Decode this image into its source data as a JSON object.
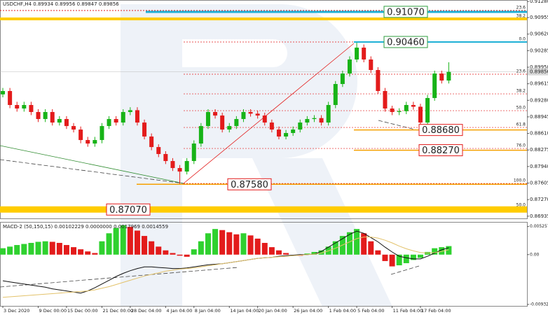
{
  "chart_data": [
    {
      "type": "candlestick",
      "title": "USDCHF,H4  0.89934 0.89956 0.89847 0.89856",
      "up_color": "#17b317",
      "down_color": "#e31b1b",
      "xlim": [
        -0.4,
        74.05
      ],
      "ylim": [
        0.8689,
        0.9131
      ],
      "yticks": [
        {
          "value": 0.9128,
          "label": "0.91280"
        },
        {
          "value": 0.90955,
          "label": "0.90955"
        },
        {
          "value": 0.9062,
          "label": "0.90620"
        },
        {
          "value": 0.90285,
          "label": "0.90285"
        },
        {
          "value": 0.8995,
          "label": "0.89950"
        },
        {
          "value": 0.89615,
          "label": "0.89615"
        },
        {
          "value": 0.8928,
          "label": "0.89280"
        },
        {
          "value": 0.88945,
          "label": "0.88945"
        },
        {
          "value": 0.8861,
          "label": "0.88610"
        },
        {
          "value": 0.88275,
          "label": "0.88275"
        },
        {
          "value": 0.8794,
          "label": "0.87940"
        },
        {
          "value": 0.87605,
          "label": "0.87605"
        },
        {
          "value": 0.8727,
          "label": "0.87270"
        },
        {
          "value": 0.86935,
          "label": "0.86935"
        }
      ],
      "last_price": 0.89856,
      "open": [
        0.894,
        0.89468,
        0.89185,
        0.89114,
        0.89185,
        0.89043,
        0.88901,
        0.89043,
        0.8883,
        0.88901,
        0.88759,
        0.88688,
        0.88476,
        0.88405,
        0.88476,
        0.88759,
        0.88901,
        0.8883,
        0.89043,
        0.8908,
        0.8883,
        0.88547,
        0.88334,
        0.88193,
        0.88051,
        0.87909,
        0.87838,
        0.88051,
        0.88405,
        0.88759,
        0.89043,
        0.88972,
        0.88688,
        0.88759,
        0.88901,
        0.89043,
        0.8901,
        0.88972,
        0.8883,
        0.88688,
        0.88547,
        0.88618,
        0.88688,
        0.8883,
        0.88901,
        0.8892,
        0.8883,
        0.89185,
        0.8961,
        0.89822,
        0.90106,
        0.90346,
        0.90106,
        0.89893,
        0.89468,
        0.89114,
        0.89043,
        0.8906,
        0.89185,
        0.8915,
        0.8883,
        0.89326,
        0.89822,
        0.8968
      ],
      "high": [
        0.8953,
        0.8953,
        0.8925,
        0.8925,
        0.8925,
        0.891,
        0.891,
        0.891,
        0.8896,
        0.8896,
        0.8882,
        0.8875,
        0.8854,
        0.8854,
        0.8882,
        0.8896,
        0.8896,
        0.891,
        0.8914,
        0.8914,
        0.8889,
        0.8861,
        0.8839,
        0.8825,
        0.8811,
        0.8797,
        0.8811,
        0.8847,
        0.8882,
        0.891,
        0.891,
        0.8903,
        0.8882,
        0.8896,
        0.891,
        0.891,
        0.8907,
        0.8903,
        0.8889,
        0.8875,
        0.8868,
        0.8875,
        0.8889,
        0.8896,
        0.8898,
        0.8898,
        0.8925,
        0.8967,
        0.8988,
        0.9017,
        0.9046,
        0.9041,
        0.9017,
        0.8995,
        0.8953,
        0.8917,
        0.8912,
        0.8925,
        0.8925,
        0.8921,
        0.8939,
        0.8988,
        0.8988,
        0.9005
      ],
      "low": [
        0.8934,
        0.8912,
        0.8905,
        0.8905,
        0.8898,
        0.8884,
        0.8884,
        0.8877,
        0.8877,
        0.887,
        0.8863,
        0.8841,
        0.8834,
        0.8834,
        0.8841,
        0.887,
        0.8877,
        0.8877,
        0.8898,
        0.8877,
        0.8849,
        0.8827,
        0.8813,
        0.8799,
        0.8785,
        0.8758,
        0.8778,
        0.8799,
        0.8834,
        0.887,
        0.8891,
        0.8863,
        0.8863,
        0.887,
        0.8884,
        0.8895,
        0.8891,
        0.8877,
        0.8863,
        0.8849,
        0.8849,
        0.8856,
        0.8863,
        0.8877,
        0.8884,
        0.8877,
        0.8877,
        0.8912,
        0.8955,
        0.8976,
        0.9005,
        0.9005,
        0.8983,
        0.8941,
        0.8905,
        0.8898,
        0.8898,
        0.89,
        0.8909,
        0.8868,
        0.8877,
        0.8927,
        0.8962,
        0.8962
      ],
      "close": [
        0.89468,
        0.89185,
        0.89114,
        0.89185,
        0.89043,
        0.88901,
        0.89043,
        0.8883,
        0.88901,
        0.88759,
        0.88688,
        0.88476,
        0.88405,
        0.88476,
        0.88759,
        0.88901,
        0.8883,
        0.89043,
        0.8908,
        0.8883,
        0.88547,
        0.88334,
        0.88193,
        0.88051,
        0.87909,
        0.87838,
        0.88051,
        0.88405,
        0.88759,
        0.89043,
        0.88972,
        0.88688,
        0.88759,
        0.88901,
        0.89043,
        0.8901,
        0.88972,
        0.8883,
        0.88688,
        0.88547,
        0.88618,
        0.88688,
        0.8883,
        0.88901,
        0.8892,
        0.8883,
        0.89185,
        0.8961,
        0.89822,
        0.90106,
        0.90346,
        0.90106,
        0.89893,
        0.89468,
        0.89114,
        0.89043,
        0.8906,
        0.89185,
        0.8915,
        0.8883,
        0.89326,
        0.89822,
        0.8968,
        0.89856
      ],
      "levels": [
        {
          "value": 0.9107,
          "label": "0.91070",
          "color": "#1fb0d6"
        },
        {
          "value": 0.9046,
          "label": "0.90460",
          "color": "#1fb0d6"
        },
        {
          "value": 0.8868,
          "label": "0.88680",
          "color": "#f5a000"
        },
        {
          "value": 0.8827,
          "label": "0.88270",
          "color": "#f5a000"
        },
        {
          "value": 0.8758,
          "label": "0.87580",
          "color": "#f5a000"
        },
        {
          "value": 0.8707,
          "label": "0.87070",
          "color": "#ffcc00"
        }
      ],
      "fib": [
        {
          "value": 0.9046,
          "label": "0.0"
        },
        {
          "value": 0.89808,
          "label": "23.6"
        },
        {
          "value": 0.89411,
          "label": "38.2"
        },
        {
          "value": 0.89071,
          "label": "50.0"
        },
        {
          "value": 0.88731,
          "label": "61.8"
        },
        {
          "value": 0.88306,
          "label": "76.0"
        },
        {
          "value": 0.87597,
          "label": "100.0"
        }
      ],
      "fib_outer": [
        {
          "value": 0.91097,
          "label": "23.6"
        },
        {
          "value": 0.90927,
          "label": "38.2"
        },
        {
          "value": 0.87101,
          "label": "50.0"
        }
      ]
    },
    {
      "type": "macd",
      "title": "MACD-2 (50,150,15) 0.00102229 0.0000000 0.0017969 0.0014559",
      "xlim": [
        -0.4,
        74.05
      ],
      "ylim": [
        -0.0096,
        0.006
      ],
      "yticks": [
        0.0052571,
        {
          "value": 0,
          "label": "0.00"
        },
        -0.0093201
      ],
      "xticks": [
        {
          "value": 0,
          "label": "3 Dec 2020"
        },
        {
          "value": 5,
          "label": "9 Dec 00:00"
        },
        {
          "value": 9,
          "label": "15 Dec 00:00"
        },
        {
          "value": 14,
          "label": "21 Dec 00:00"
        },
        {
          "value": 18,
          "label": "28 Dec 04:00"
        },
        {
          "value": 23,
          "label": "4 Jan 04:00"
        },
        {
          "value": 27,
          "label": "8 Jan 04:00"
        },
        {
          "value": 32,
          "label": "14 Jan 04:00"
        },
        {
          "value": 36,
          "label": "20 Jan 04:00"
        },
        {
          "value": 41,
          "label": "26 Jan 04:00"
        },
        {
          "value": 46,
          "label": "1 Feb 04:00"
        },
        {
          "value": 50,
          "label": "5 Feb 04:00"
        },
        {
          "value": 55,
          "label": "11 Feb 04:00"
        },
        {
          "value": 59,
          "label": "17 Feb 04:00"
        }
      ],
      "up_color": "#2fd12f",
      "down_color": "#e31b1b",
      "histogram": [
        0.0012,
        0.0015,
        0.0018,
        0.002,
        0.0022,
        0.0024,
        0.0025,
        0.0024,
        0.0022,
        0.0018,
        0.0014,
        0.001,
        0.0006,
        0.0003,
        0.0025,
        0.004,
        0.005,
        0.0055,
        0.0052,
        0.0045,
        0.0035,
        0.0025,
        0.0015,
        0.0008,
        0.0003,
        -0.0002,
        -0.0004,
        0.001,
        0.0025,
        0.004,
        0.0048,
        0.0046,
        0.0042,
        0.0038,
        0.004,
        0.0036,
        0.003,
        0.0022,
        0.0014,
        0.0008,
        0.0003,
        0.0,
        -0.0002,
        0.0002,
        0.0005,
        0.0008,
        0.0015,
        0.0025,
        0.0035,
        0.0042,
        0.0048,
        0.004,
        0.0025,
        0.0008,
        -0.0012,
        -0.0022,
        -0.002,
        -0.0016,
        -0.001,
        -0.0006,
        0.0005,
        0.0012,
        0.0014,
        0.0016
      ],
      "series": [
        {
          "color": "#111111",
          "values": [
            -0.0049,
            -0.0051,
            -0.0053,
            -0.0055,
            -0.0057,
            -0.0059,
            -0.0061,
            -0.0064,
            -0.0066,
            -0.0068,
            -0.007,
            -0.0072,
            -0.0068,
            -0.0062,
            -0.0055,
            -0.0048,
            -0.0041,
            -0.0035,
            -0.003,
            -0.0026,
            -0.0023,
            -0.0023,
            -0.0024,
            -0.0025,
            -0.0026,
            -0.0026,
            -0.0025,
            -0.0023,
            -0.0021,
            -0.0019,
            -0.0018,
            -0.0017,
            -0.0015,
            -0.0013,
            -0.0011,
            -0.0009,
            -0.0007,
            -0.0006,
            -0.0005,
            -0.0003,
            -0.0002,
            -0.0001,
            0.0,
            0.0,
            0.0001,
            0.0006,
            0.0014,
            0.0022,
            0.003,
            0.0038,
            0.0044,
            0.004,
            0.0032,
            0.0024,
            0.0014,
            0.0005,
            -0.0003,
            -0.0006,
            -0.0008,
            -0.0008,
            -0.0003,
            0.0003,
            0.0009,
            0.0013
          ]
        },
        {
          "color": "#e3c26a",
          "values": [
            -0.008,
            -0.0079,
            -0.0078,
            -0.0077,
            -0.0076,
            -0.0075,
            -0.0074,
            -0.0073,
            -0.0072,
            -0.0071,
            -0.007,
            -0.0069,
            -0.0068,
            -0.0066,
            -0.0063,
            -0.006,
            -0.0056,
            -0.0052,
            -0.0048,
            -0.0044,
            -0.004,
            -0.0037,
            -0.0034,
            -0.0031,
            -0.0029,
            -0.0027,
            -0.0026,
            -0.0025,
            -0.0023,
            -0.0021,
            -0.0019,
            -0.0017,
            -0.0015,
            -0.0013,
            -0.0011,
            -0.0009,
            -0.0007,
            -0.0006,
            -0.0005,
            -0.0004,
            -0.0003,
            -0.0002,
            -0.0001,
            0.0,
            0.0001,
            0.0003,
            0.0007,
            0.0012,
            0.0018,
            0.0024,
            0.003,
            0.0033,
            0.0033,
            0.0031,
            0.0027,
            0.0022,
            0.0016,
            0.0011,
            0.0007,
            0.0004,
            0.0003,
            0.0004,
            0.0006,
            0.0009
          ]
        }
      ]
    }
  ]
}
